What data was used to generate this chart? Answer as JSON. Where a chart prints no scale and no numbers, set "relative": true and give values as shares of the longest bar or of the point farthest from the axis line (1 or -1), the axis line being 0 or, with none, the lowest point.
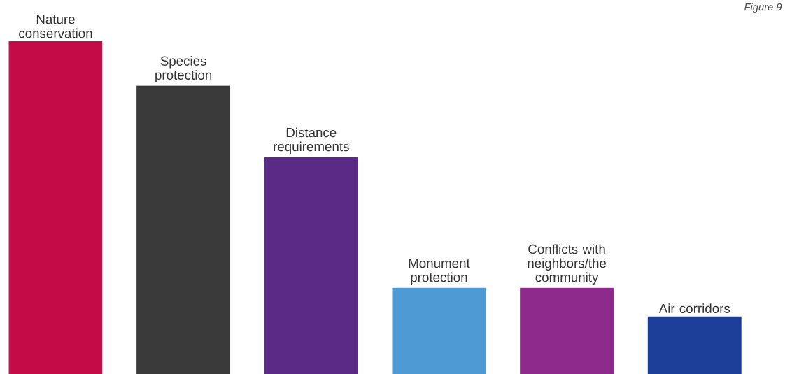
{
  "chart_data": {
    "type": "bar",
    "relative": true,
    "categories": [
      "Nature conservation",
      "Species protection",
      "Distance requirements",
      "Monument protection",
      "Conflicts with neighbors/the community",
      "Air corridors"
    ],
    "values": [
      1,
      0.867,
      0.652,
      0.259,
      0.259,
      0.173
    ],
    "colors": [
      "#c40a47",
      "#3a3a3a",
      "#5b2a86",
      "#4d9ad4",
      "#8e2a8c",
      "#1d3f99"
    ],
    "annotations": [
      "Figure 9"
    ]
  }
}
